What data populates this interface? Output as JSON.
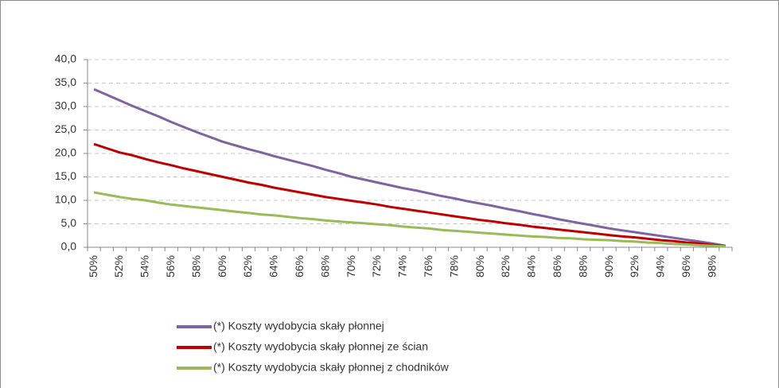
{
  "chart_data": {
    "type": "line",
    "categories": [
      "50%",
      null,
      "52%",
      null,
      "54%",
      null,
      "56%",
      null,
      "58%",
      null,
      "60%",
      null,
      "62%",
      null,
      "64%",
      null,
      "66%",
      null,
      "68%",
      null,
      "70%",
      null,
      "72%",
      null,
      "74%",
      null,
      "76%",
      null,
      "78%",
      null,
      "80%",
      null,
      "82%",
      null,
      "84%",
      null,
      "86%",
      null,
      "88%",
      null,
      "90%",
      null,
      "92%",
      null,
      "94%",
      null,
      "96%",
      null,
      "98%",
      null
    ],
    "series": [
      {
        "name": "(*) Koszty wydobycia skały płonnej",
        "color": "#8064a2",
        "values": [
          33.7,
          32.5,
          31.3,
          30.1,
          29.0,
          27.9,
          26.7,
          25.6,
          24.5,
          23.5,
          22.5,
          21.7,
          20.9,
          20.2,
          19.4,
          18.7,
          18.0,
          17.3,
          16.5,
          15.8,
          15.0,
          14.4,
          13.8,
          13.2,
          12.6,
          12.1,
          11.5,
          10.9,
          10.4,
          9.8,
          9.3,
          8.8,
          8.2,
          7.7,
          7.1,
          6.6,
          6.0,
          5.5,
          5.0,
          4.5,
          4.0,
          3.6,
          3.2,
          2.8,
          2.4,
          2.0,
          1.6,
          1.2,
          0.8,
          0.3
        ]
      },
      {
        "name": "(*) Koszty wydobycia skały płonnej ze ścian",
        "color": "#c00000",
        "values": [
          22.0,
          21.1,
          20.2,
          19.6,
          18.8,
          18.1,
          17.5,
          16.8,
          16.2,
          15.6,
          15.0,
          14.4,
          13.8,
          13.3,
          12.7,
          12.2,
          11.7,
          11.2,
          10.7,
          10.3,
          9.9,
          9.5,
          9.1,
          8.6,
          8.2,
          7.8,
          7.4,
          7.0,
          6.6,
          6.2,
          5.8,
          5.5,
          5.1,
          4.8,
          4.4,
          4.1,
          3.8,
          3.5,
          3.2,
          2.9,
          2.6,
          2.3,
          2.1,
          1.8,
          1.5,
          1.3,
          1.0,
          0.8,
          0.5,
          0.3
        ]
      },
      {
        "name": "(*) Koszty wydobycia skały płonnej z chodników",
        "color": "#9bbb59",
        "values": [
          11.7,
          11.2,
          10.7,
          10.3,
          10.0,
          9.5,
          9.1,
          8.8,
          8.5,
          8.2,
          7.9,
          7.6,
          7.3,
          7.0,
          6.8,
          6.5,
          6.2,
          6.0,
          5.7,
          5.5,
          5.3,
          5.1,
          4.9,
          4.7,
          4.4,
          4.2,
          4.0,
          3.7,
          3.5,
          3.3,
          3.1,
          2.9,
          2.7,
          2.5,
          2.3,
          2.2,
          2.0,
          1.9,
          1.7,
          1.6,
          1.5,
          1.3,
          1.2,
          1.0,
          0.9,
          0.7,
          0.6,
          0.4,
          0.3,
          0.2
        ]
      }
    ],
    "ylim": [
      0,
      40
    ],
    "yticks": [
      {
        "value": 0,
        "label": "0,0"
      },
      {
        "value": 5,
        "label": "5,0"
      },
      {
        "value": 10,
        "label": "10,0"
      },
      {
        "value": 15,
        "label": "15,0"
      },
      {
        "value": 20,
        "label": "20,0"
      },
      {
        "value": 25,
        "label": "25,0"
      },
      {
        "value": 30,
        "label": "30,0"
      },
      {
        "value": 35,
        "label": "35,0"
      },
      {
        "value": 40,
        "label": "40,0"
      }
    ],
    "grid": true,
    "legend": "bottom"
  }
}
